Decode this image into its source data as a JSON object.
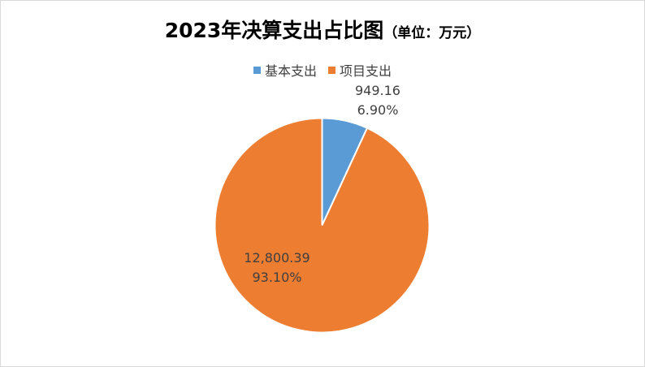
{
  "chart_data": {
    "type": "pie",
    "title": "2023年决算支出占比图",
    "unit_label": "（单位：万元）",
    "legend_position": "top",
    "series": [
      {
        "name": "基本支出",
        "value": 949.16,
        "value_label": "949.16",
        "percent_label": "6.90%",
        "color": "#5b9bd5"
      },
      {
        "name": "项目支出",
        "value": 12800.39,
        "value_label": "12,800.39",
        "percent_label": "93.10%",
        "color": "#ed7d31"
      }
    ]
  }
}
